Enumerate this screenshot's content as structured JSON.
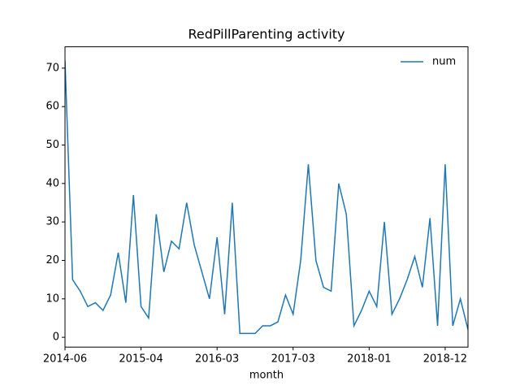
{
  "chart_data": {
    "type": "line",
    "title": "RedPillParenting activity",
    "x_label": "month",
    "categories": [
      "2014-06",
      null,
      null,
      null,
      null,
      null,
      null,
      null,
      null,
      null,
      "2015-04",
      null,
      null,
      null,
      null,
      null,
      null,
      null,
      null,
      null,
      "2016-03",
      null,
      null,
      null,
      null,
      null,
      null,
      null,
      null,
      null,
      "2017-03",
      null,
      null,
      null,
      null,
      null,
      null,
      null,
      null,
      null,
      "2018-01",
      null,
      null,
      null,
      null,
      null,
      null,
      null,
      null,
      null,
      "2018-12",
      null,
      null,
      null
    ],
    "series": [
      {
        "name": "num",
        "color": "#1f77b4",
        "values": [
          72,
          15,
          12,
          8,
          9,
          7,
          11,
          22,
          9,
          37,
          8,
          5,
          32,
          17,
          25,
          23,
          35,
          24,
          17,
          10,
          26,
          6,
          35,
          1,
          1,
          1,
          3,
          3,
          4,
          11,
          6,
          20,
          45,
          20,
          13,
          12,
          40,
          32,
          3,
          7,
          12,
          8,
          30,
          6,
          10,
          15,
          21,
          13,
          31,
          3,
          45,
          3,
          10,
          2
        ]
      }
    ],
    "ylim": [
      -2.55,
      75.55
    ],
    "yticks": [
      0,
      10,
      20,
      30,
      40,
      50,
      60,
      70
    ],
    "legend": "upper right"
  }
}
